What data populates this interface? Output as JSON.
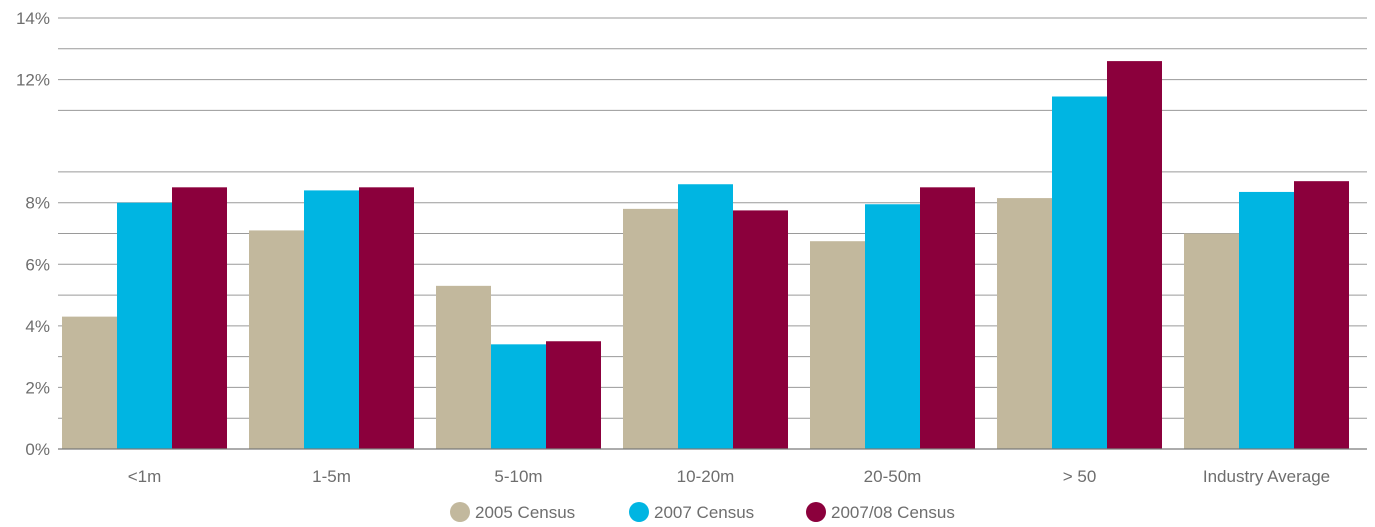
{
  "chart_data": {
    "type": "bar",
    "title": "",
    "xlabel": "",
    "ylabel": "",
    "categories": [
      "<1m",
      "1-5m",
      "5-10m",
      "10-20m",
      "20-50m",
      "> 50",
      "Industry Average"
    ],
    "series": [
      {
        "name": "2005 Census",
        "color": "#c2b89d",
        "values": [
          4.3,
          7.1,
          5.3,
          7.8,
          6.75,
          8.15,
          7.0
        ]
      },
      {
        "name": "2007 Census",
        "color": "#00b5e2",
        "values": [
          8.0,
          8.4,
          3.4,
          8.6,
          7.95,
          11.45,
          8.35
        ]
      },
      {
        "name": "2007/08 Census",
        "color": "#8b003c",
        "values": [
          8.5,
          8.5,
          3.5,
          7.75,
          8.5,
          12.6,
          8.7
        ]
      }
    ],
    "ylim": [
      0,
      14
    ],
    "yticks": [
      "0%",
      "2%",
      "4%",
      "6%",
      "8%",
      "12%",
      "14%"
    ],
    "ytick_values": [
      0,
      2,
      4,
      6,
      8,
      12,
      14
    ],
    "minor_grid_values": [
      1,
      3,
      5,
      7,
      9,
      11,
      13
    ],
    "grid": true,
    "legend": "bottom-center"
  }
}
